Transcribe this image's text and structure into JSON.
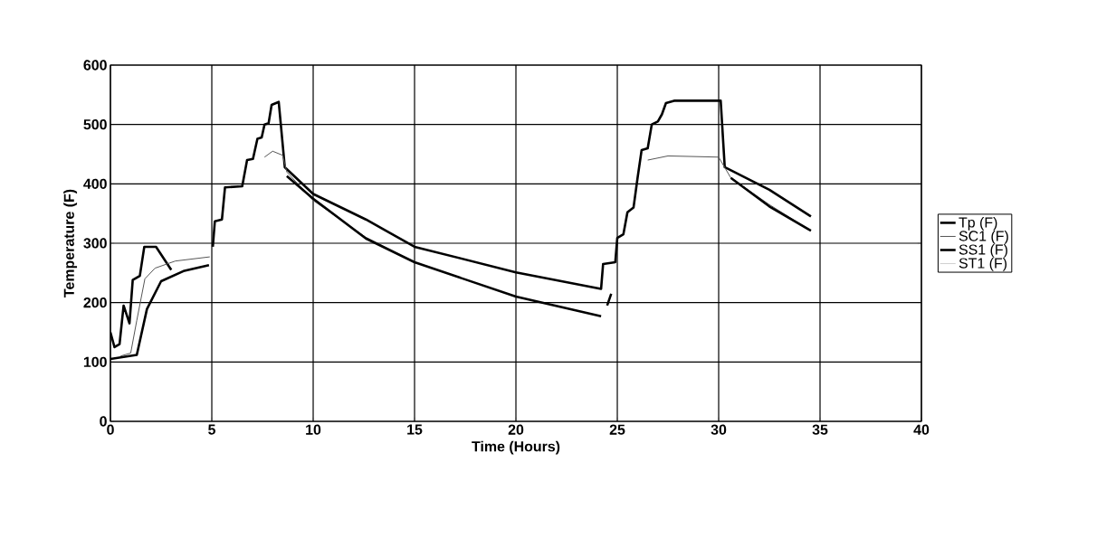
{
  "chart_data": {
    "type": "line",
    "xlabel": "Time (Hours)",
    "ylabel": "Temperature (F)",
    "xlim": [
      0,
      40
    ],
    "ylim": [
      0,
      600
    ],
    "xticks": [
      0,
      5,
      10,
      15,
      20,
      25,
      30,
      35,
      40
    ],
    "yticks": [
      0,
      100,
      200,
      300,
      400,
      500,
      600
    ],
    "grid": true,
    "legend": "right",
    "series": [
      {
        "name": "Tp (F)",
        "color": "#000000",
        "x": [
          0,
          0.2,
          0.45,
          0.65,
          0.94,
          1.1,
          1.45,
          1.67,
          2.25,
          3.0,
          4,
          5.05,
          5.15,
          5.5,
          5.65,
          6.5,
          6.74,
          7.03,
          7.25,
          7.46,
          7.6,
          7.8,
          7.95,
          8.3,
          8.6,
          10,
          12.6,
          15,
          20,
          24.2,
          24.3,
          24.9,
          25.0,
          25.3,
          25.5,
          25.8,
          26.0,
          26.2,
          26.5,
          26.7,
          27.0,
          27.2,
          27.4,
          27.8,
          30.1,
          30.3,
          32.5,
          34.55
        ],
        "values": [
          150,
          125,
          130,
          195,
          165,
          238,
          245,
          294,
          294,
          255,
          null,
          294,
          337,
          340,
          394,
          396,
          440,
          442,
          476,
          478,
          500,
          502,
          533,
          538,
          428,
          383,
          340,
          294,
          251,
          223,
          265,
          268,
          309,
          315,
          352,
          360,
          410,
          457,
          460,
          500,
          505,
          517,
          536,
          540,
          540,
          428,
          390,
          345
        ]
      },
      {
        "name": "SC1 (F)",
        "color": "#555555",
        "x": [
          0.5,
          1.0,
          1.3,
          1.7,
          2.2,
          3.2,
          4.9,
          6,
          7.6,
          8.0,
          8.5,
          8.7,
          10,
          12.6,
          15,
          20,
          24.2,
          24.5,
          26.5,
          27.5,
          30,
          30.6,
          32.5,
          34.55
        ],
        "values": [
          110,
          115,
          170,
          240,
          258,
          270,
          277,
          null,
          445,
          455,
          448,
          420,
          372,
          310,
          268,
          210,
          177,
          null,
          440,
          447,
          445,
          410,
          365,
          321
        ]
      },
      {
        "name": "SS1 (F)",
        "color": "#000000",
        "x": [
          0,
          1.3,
          1.8,
          2.5,
          3.6,
          4.86,
          6,
          8.7,
          10,
          12.6,
          15,
          20,
          24.2,
          24.4,
          24.5,
          24.7,
          25,
          30.6,
          32.5,
          34.55
        ],
        "values": [
          105,
          112,
          189,
          236,
          253,
          263,
          null,
          413,
          375,
          308,
          268,
          210,
          177,
          null,
          195,
          215,
          null,
          410,
          362,
          321
        ]
      },
      {
        "name": "ST1 (F)",
        "color": "#d0d0d0"
      }
    ]
  }
}
